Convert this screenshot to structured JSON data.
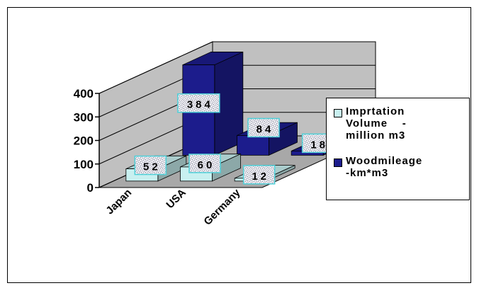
{
  "chart_data": {
    "type": "bar",
    "subtype": "3d-clustered-depth",
    "categories": [
      "Japan",
      "USA",
      "Germany"
    ],
    "series": [
      {
        "name": "Imprtation Volume - million m3",
        "values": [
          52,
          60,
          12
        ],
        "color": "#c8f0f0"
      },
      {
        "name": "Woodmileage -km*m3",
        "values": [
          384,
          84,
          18
        ],
        "color": "#1c1c8c"
      }
    ],
    "ylim": [
      0,
      400
    ],
    "yticks": [
      "0",
      "100",
      "200",
      "300",
      "400"
    ],
    "grid": true,
    "legend_position": "right",
    "wall_color": "#c0c0c0",
    "data_label_box_color": "#4fd0d8"
  },
  "legend": {
    "items": [
      {
        "text": "Imprtation\nVolume    -\nmillion m3"
      },
      {
        "text": "Woodmileage\n-km*m3"
      }
    ]
  }
}
